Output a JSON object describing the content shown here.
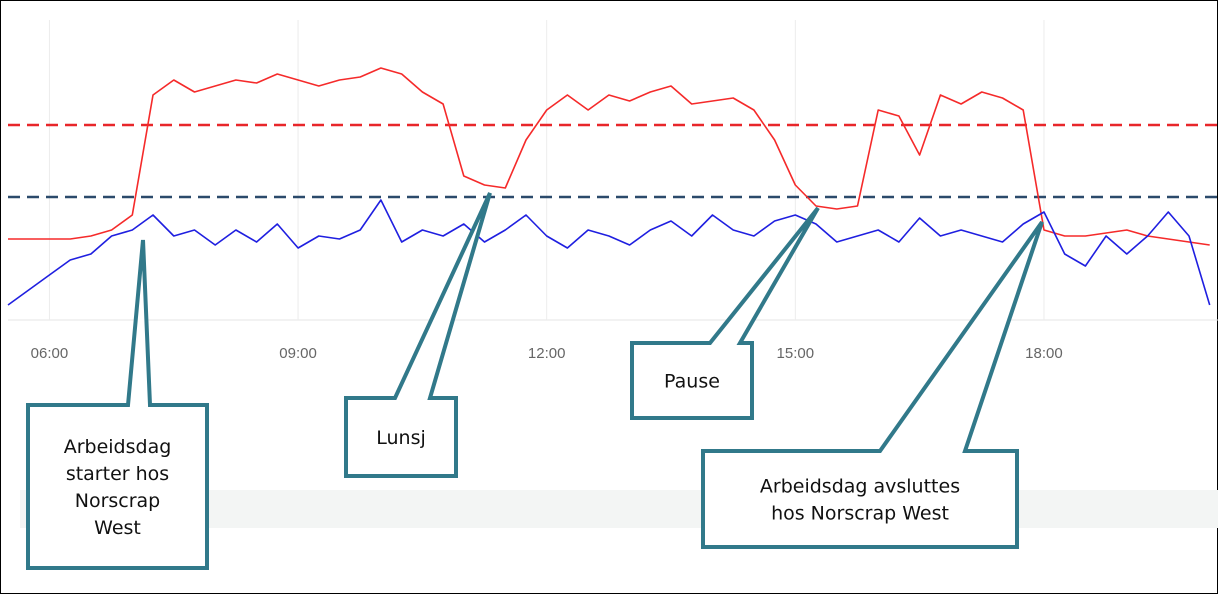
{
  "chart_data": {
    "type": "line",
    "x": [
      5.5,
      5.75,
      6,
      6.25,
      6.5,
      6.75,
      7,
      7.25,
      7.5,
      7.75,
      8,
      8.25,
      8.5,
      8.75,
      9,
      9.25,
      9.5,
      9.75,
      10,
      10.25,
      10.5,
      10.75,
      11,
      11.25,
      11.5,
      11.75,
      12,
      12.25,
      12.5,
      12.75,
      13,
      13.25,
      13.5,
      13.75,
      14,
      14.25,
      14.5,
      14.75,
      15,
      15.25,
      15.5,
      15.75,
      16,
      16.25,
      16.5,
      16.75,
      17,
      17.25,
      17.5,
      17.75,
      18,
      18.25,
      18.5,
      18.75,
      19,
      19.25,
      19.5,
      19.75,
      20
    ],
    "xlim": [
      5.5,
      20.1
    ],
    "xticks": [
      {
        "value": 6,
        "label": "06:00"
      },
      {
        "value": 9,
        "label": "09:00"
      },
      {
        "value": 12,
        "label": "12:00"
      },
      {
        "value": 15,
        "label": "15:00"
      },
      {
        "value": 18,
        "label": "18:00"
      }
    ],
    "ylim": [
      0,
      100
    ],
    "grid": true,
    "series": [
      {
        "color": "#f52a2a",
        "values": [
          27,
          27,
          27,
          27,
          28,
          30,
          35,
          75,
          80,
          76,
          78,
          80,
          79,
          82,
          80,
          78,
          80,
          81,
          84,
          82,
          76,
          72,
          48,
          45,
          44,
          60,
          70,
          75,
          70,
          75,
          73,
          76,
          78,
          72,
          73,
          74,
          70,
          60,
          45,
          38,
          37,
          38,
          70,
          68,
          55,
          75,
          72,
          76,
          74,
          70,
          30,
          28,
          28,
          29,
          30,
          28,
          27,
          26,
          25
        ]
      },
      {
        "color": "#1f1fe0",
        "values": [
          5,
          10,
          15,
          20,
          22,
          28,
          30,
          35,
          28,
          30,
          25,
          30,
          26,
          32,
          24,
          28,
          27,
          30,
          40,
          26,
          30,
          28,
          32,
          26,
          30,
          35,
          28,
          24,
          30,
          28,
          25,
          30,
          33,
          28,
          35,
          30,
          28,
          33,
          35,
          32,
          26,
          28,
          30,
          26,
          34,
          28,
          30,
          28,
          26,
          32,
          36,
          22,
          18,
          28,
          22,
          28,
          36,
          28,
          5
        ]
      }
    ],
    "reference_lines": [
      {
        "value": 65,
        "color": "#e8262a"
      },
      {
        "value": 41,
        "color": "#2b4a6b"
      }
    ],
    "annotations": [
      {
        "lines": [
          "Arbeidsdag",
          "starter hos",
          "Norscrap",
          "West"
        ]
      },
      {
        "lines": [
          "Lunsj"
        ]
      },
      {
        "lines": [
          "Pause"
        ]
      },
      {
        "lines": [
          "Arbeidsdag avsluttes",
          "hos Norscrap West"
        ]
      }
    ]
  }
}
